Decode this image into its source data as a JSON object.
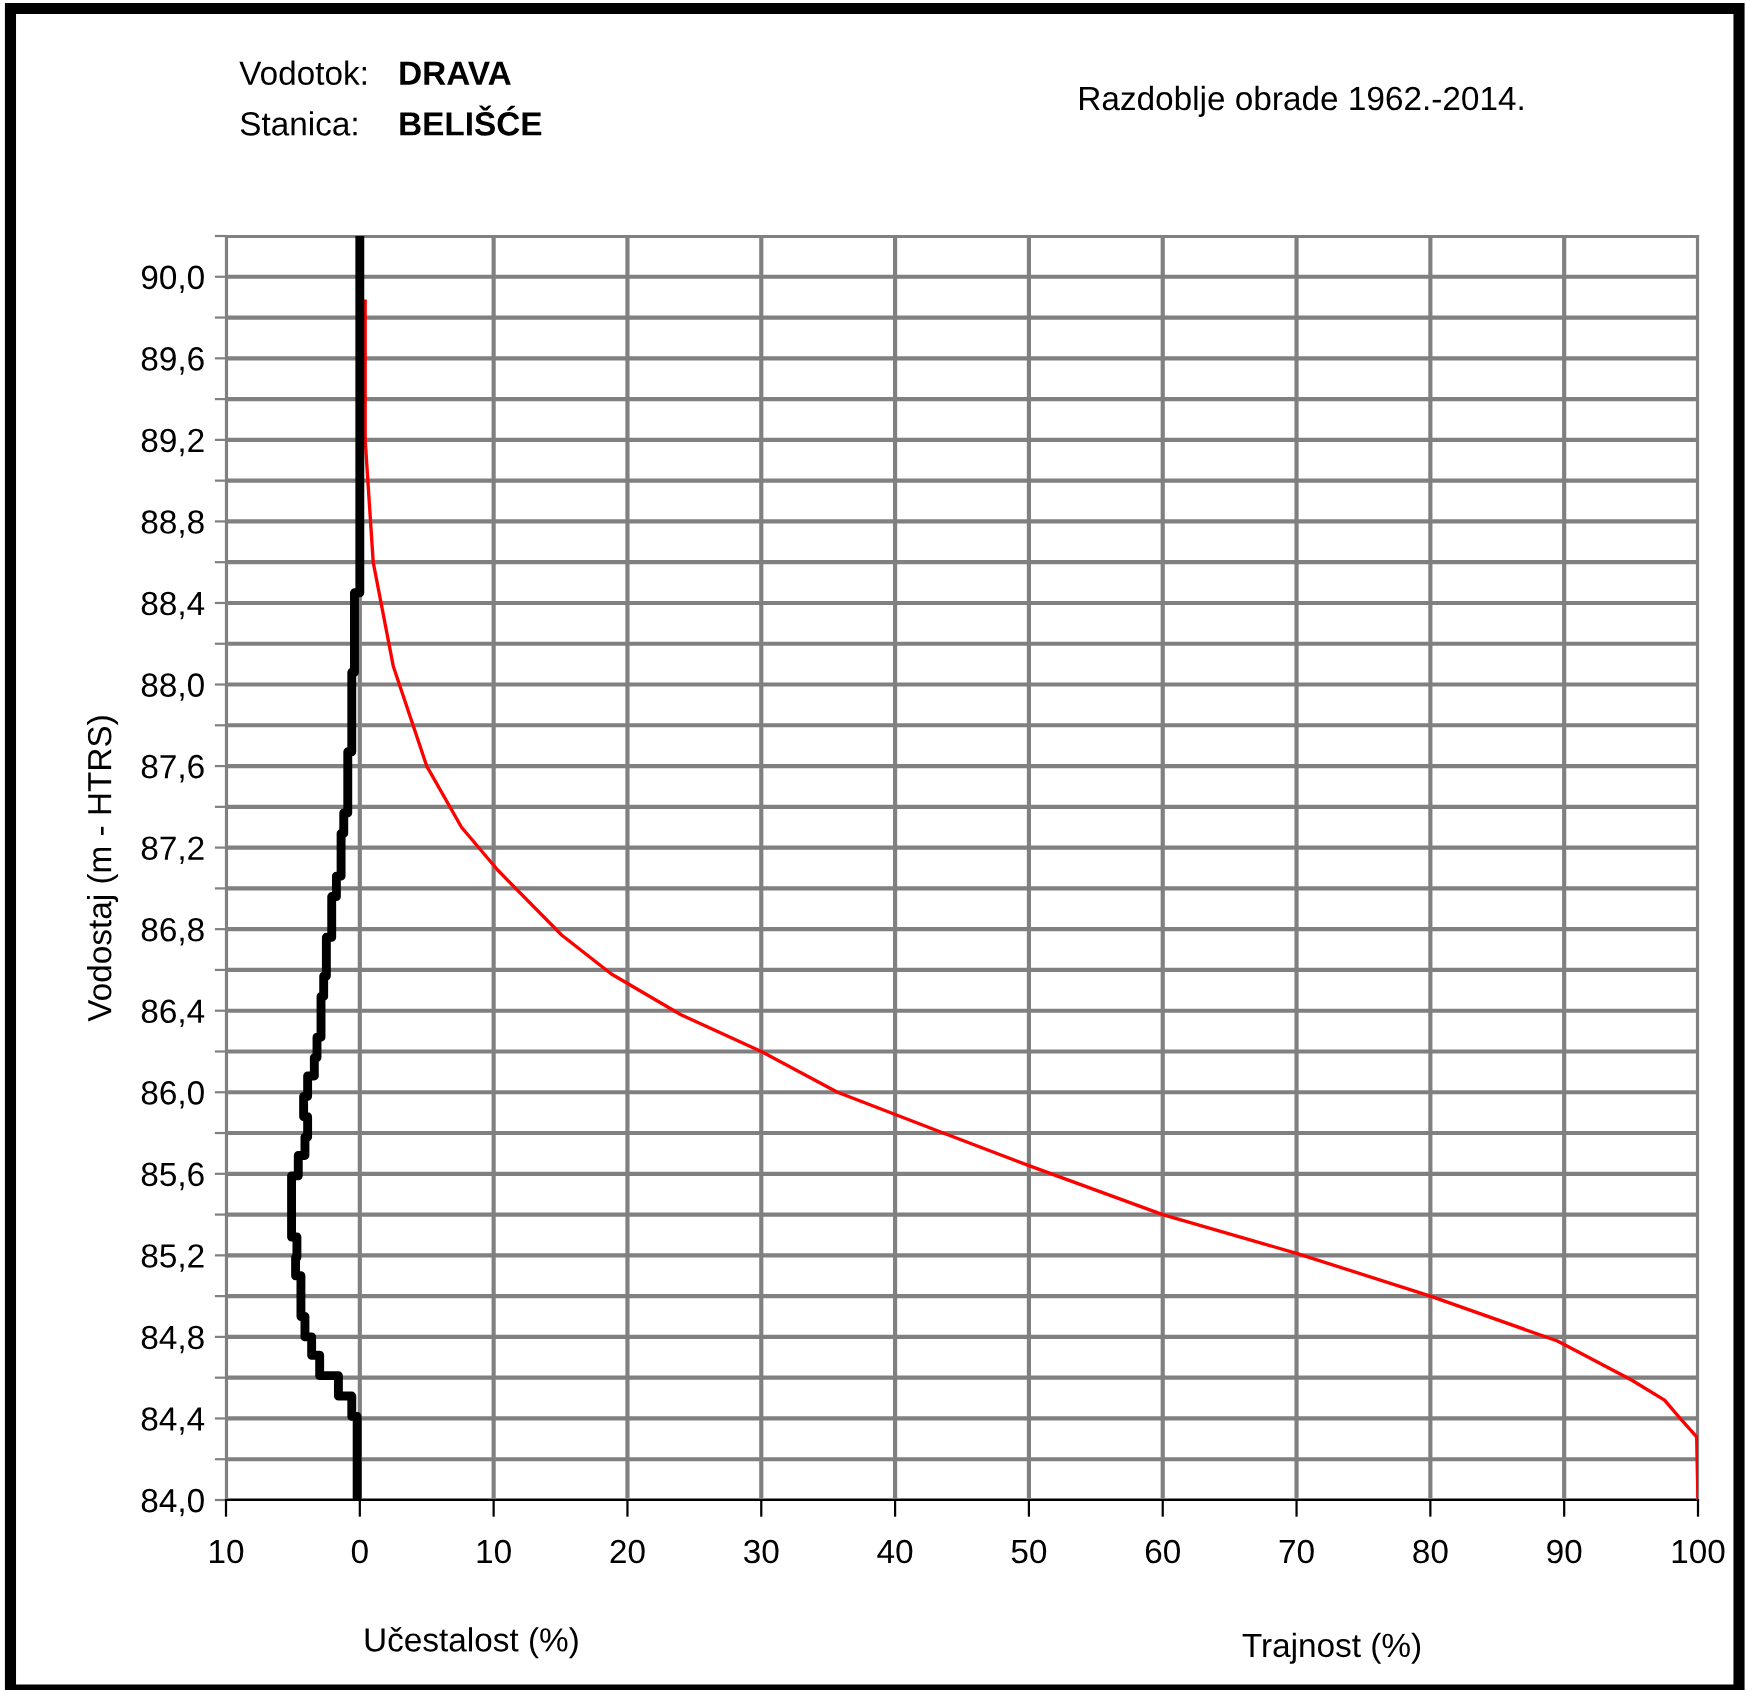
{
  "chart_data": {
    "type": "line",
    "xlabel": "Trajnost (%)",
    "ylabel": "Vodostaj (m - HTRS)",
    "annotations": [
      "Vodotok:",
      "DRAVA",
      "Stanica:",
      "BELIŠĆE",
      "Razdoblje obrade 1962.-2014.",
      "Učestalost (%)"
    ],
    "xlim": [
      -10,
      100
    ],
    "xticks": [
      {
        "value": -10,
        "label": "10"
      },
      0,
      10,
      20,
      30,
      40,
      50,
      60,
      70,
      80,
      90,
      100
    ],
    "ylim": [
      84.0,
      90.2
    ],
    "yticks": [
      {
        "value": 84.0,
        "label": "84,0"
      },
      {
        "value": 84.2,
        "label": null
      },
      {
        "value": 84.4,
        "label": "84,4"
      },
      {
        "value": 84.6,
        "label": null
      },
      {
        "value": 84.8,
        "label": "84,8"
      },
      {
        "value": 85.0,
        "label": null
      },
      {
        "value": 85.2,
        "label": "85,2"
      },
      {
        "value": 85.4,
        "label": null
      },
      {
        "value": 85.6,
        "label": "85,6"
      },
      {
        "value": 85.8,
        "label": null
      },
      {
        "value": 86.0,
        "label": "86,0"
      },
      {
        "value": 86.2,
        "label": null
      },
      {
        "value": 86.4,
        "label": "86,4"
      },
      {
        "value": 86.6,
        "label": null
      },
      {
        "value": 86.8,
        "label": "86,8"
      },
      {
        "value": 87.0,
        "label": null
      },
      {
        "value": 87.2,
        "label": "87,2"
      },
      {
        "value": 87.4,
        "label": null
      },
      {
        "value": 87.6,
        "label": "87,6"
      },
      {
        "value": 87.8,
        "label": null
      },
      {
        "value": 88.0,
        "label": "88,0"
      },
      {
        "value": 88.2,
        "label": null
      },
      {
        "value": 88.4,
        "label": "88,4"
      },
      {
        "value": 88.6,
        "label": null
      },
      {
        "value": 88.8,
        "label": "88,8"
      },
      {
        "value": 89.0,
        "label": null
      },
      {
        "value": 89.2,
        "label": "89,2"
      },
      {
        "value": 89.4,
        "label": null
      },
      {
        "value": 89.6,
        "label": "89,6"
      },
      {
        "value": 89.8,
        "label": null
      },
      {
        "value": 90.0,
        "label": "90,0"
      },
      {
        "value": 90.2,
        "label": null
      }
    ],
    "grid": true,
    "legend": false,
    "line_style": "solid",
    "marker": "none",
    "series": [
      {
        "color": "#ff0000",
        "x": [
          0.4,
          0.4,
          0.6,
          1.0,
          2.5,
          5,
          7.6,
          10.3,
          15.1,
          18.8,
          24,
          30,
          35.7,
          43.6,
          50,
          60,
          70,
          80,
          89.5,
          95,
          97.5,
          98.8,
          99.9,
          100
        ],
        "values": [
          89.88,
          89.2,
          89.0,
          88.6,
          88.09,
          87.6,
          87.3,
          87.09,
          86.77,
          86.58,
          86.38,
          86.2,
          86.0,
          85.8,
          85.64,
          85.4,
          85.21,
          85.0,
          84.78,
          84.59,
          84.49,
          84.39,
          84.31,
          84.0
        ]
      },
      {
        "color": "#000000",
        "x": [
          0,
          0,
          -0.4,
          -0.4,
          -0.6,
          -0.6,
          -0.9,
          -0.9,
          -1.2,
          -1.2,
          -1.4,
          -1.4,
          -1.75,
          -1.75,
          -2.1,
          -2.1,
          -2.5,
          -2.5,
          -2.7,
          -2.7,
          -2.9,
          -2.9,
          -3.2,
          -3.2,
          -3.4,
          -3.4,
          -3.9,
          -3.9,
          -4.2,
          -4.2,
          -3.9,
          -3.9,
          -4.1,
          -4.1,
          -4.6,
          -4.6,
          -5.1,
          -5.1,
          -4.7,
          -4.7,
          -4.8,
          -4.8,
          -4.4,
          -4.4,
          -4.1,
          -4.1,
          -3.6,
          -3.6,
          -3.0,
          -3.0,
          -1.6,
          -1.6,
          -0.6,
          -0.6,
          -0.2,
          -0.2
        ],
        "values": [
          90.2,
          88.45,
          88.45,
          88.06,
          88.06,
          87.67,
          87.67,
          87.37,
          87.37,
          87.27,
          87.27,
          87.06,
          87.06,
          86.96,
          86.96,
          86.76,
          86.76,
          86.57,
          86.57,
          86.47,
          86.47,
          86.27,
          86.27,
          86.17,
          86.17,
          86.08,
          86.08,
          85.98,
          85.98,
          85.88,
          85.88,
          85.78,
          85.78,
          85.69,
          85.69,
          85.59,
          85.59,
          85.29,
          85.29,
          85.19,
          85.19,
          85.1,
          85.1,
          84.9,
          84.9,
          84.8,
          84.8,
          84.71,
          84.71,
          84.61,
          84.61,
          84.51,
          84.51,
          84.41,
          84.41,
          84.0
        ]
      }
    ]
  }
}
